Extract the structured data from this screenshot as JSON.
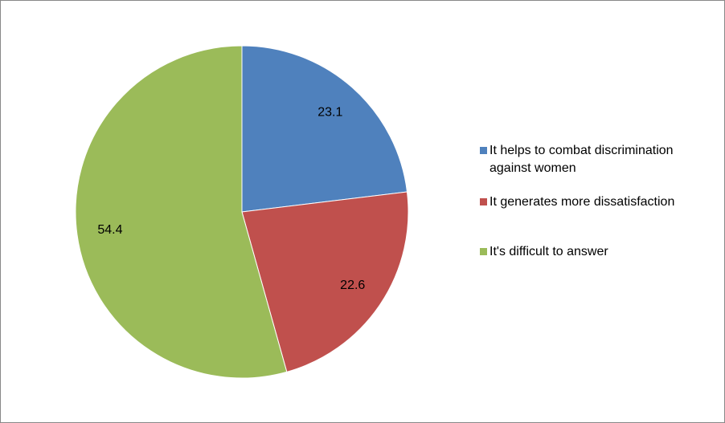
{
  "chart_data": {
    "type": "pie",
    "categories": [
      "It helps to combat discrimination against women",
      "It generates more dissatisfaction",
      "It's difficult to answer"
    ],
    "values": [
      23.1,
      22.6,
      54.4
    ],
    "colors": [
      "#4f81bd",
      "#c0504d",
      "#9bbb59"
    ],
    "legend": "right"
  }
}
